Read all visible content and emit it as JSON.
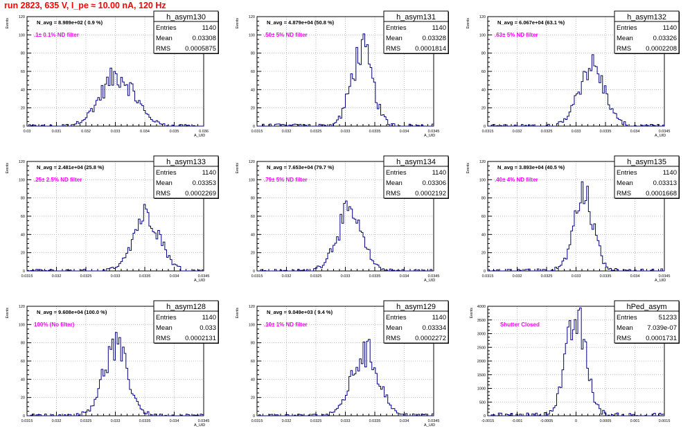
{
  "header": {
    "title": "run 2823,   635 V, I_pe ≈ 10.00 nA, 120 Hz"
  },
  "colors": {
    "title": "#ff0000",
    "histogram": "#000080",
    "filter_label": "#ff00ff",
    "grid": "#bbbbbb"
  },
  "chart_data": [
    {
      "type": "bar",
      "histogram": true,
      "stats": {
        "name": "h_asym130",
        "entries": "1140",
        "mean": "0.03308",
        "rms": "0.0005875"
      },
      "annotation": "N_avg = 8.989e+02 ( 0.9 %)",
      "filter_label": ".1± 0.1% ND filter",
      "xlabel": "A_UID",
      "ylabel": "Events",
      "xlim": [
        0.03,
        0.036
      ],
      "ylim": [
        0,
        120
      ],
      "xticks": [
        "0.03",
        "0.031",
        "0.032",
        "0.033",
        "0.034",
        "0.035",
        "0.036"
      ],
      "yticks": [
        "0",
        "20",
        "40",
        "60",
        "80",
        "100",
        "120"
      ],
      "dist": {
        "mean": 0.03308,
        "sigma": 0.00059,
        "peak": 55
      }
    },
    {
      "type": "bar",
      "histogram": true,
      "stats": {
        "name": "h_asym131",
        "entries": "1140",
        "mean": "0.03328",
        "rms": "0.0001814"
      },
      "annotation": "N_avg = 4.879e+04 (50.8 %)",
      "filter_label": ".50± 5% ND filter",
      "xlabel": "A_UID",
      "ylabel": "Events",
      "xlim": [
        0.0315,
        0.0345
      ],
      "xticks": [
        "0.0315",
        "0.032",
        "0.0325",
        "0.033",
        "0.0335",
        "0.034",
        "0.0345"
      ],
      "ylim": [
        0,
        120
      ],
      "yticks": [
        "0",
        "20",
        "40",
        "60",
        "80",
        "100",
        "120"
      ],
      "dist": {
        "mean": 0.03328,
        "sigma": 0.00018,
        "peak": 82
      }
    },
    {
      "type": "bar",
      "histogram": true,
      "stats": {
        "name": "h_asym132",
        "entries": "1140",
        "mean": "0.03326",
        "rms": "0.0002208"
      },
      "annotation": "N_avg = 6.067e+04 (63.1 %)",
      "filter_label": ".63± 5% ND filter",
      "xlabel": "A_UID",
      "ylabel": "Events",
      "xlim": [
        0.0315,
        0.0345
      ],
      "xticks": [
        "0.0315",
        "0.032",
        "0.0325",
        "0.033",
        "0.0335",
        "0.034",
        "0.0345"
      ],
      "ylim": [
        0,
        120
      ],
      "yticks": [
        "0",
        "20",
        "40",
        "60",
        "80",
        "100",
        "120"
      ],
      "dist": {
        "mean": 0.03326,
        "sigma": 0.00022,
        "peak": 66
      }
    },
    {
      "type": "bar",
      "histogram": true,
      "stats": {
        "name": "h_asym133",
        "entries": "1140",
        "mean": "0.03353",
        "rms": "0.0002269"
      },
      "annotation": "N_avg = 2.481e+04 (25.8 %)",
      "filter_label": ".25± 2.5% ND filter",
      "xlabel": "A_UID",
      "ylabel": "Events",
      "xlim": [
        0.0315,
        0.0345
      ],
      "xticks": [
        "0.0315",
        "0.032",
        "0.0325",
        "0.033",
        "0.0335",
        "0.034",
        "0.0345"
      ],
      "ylim": [
        0,
        120
      ],
      "yticks": [
        "0",
        "20",
        "40",
        "60",
        "80",
        "100",
        "120"
      ],
      "dist": {
        "mean": 0.03353,
        "sigma": 0.00023,
        "peak": 63
      }
    },
    {
      "type": "bar",
      "histogram": true,
      "stats": {
        "name": "h_asym134",
        "entries": "1140",
        "mean": "0.03306",
        "rms": "0.0002192"
      },
      "annotation": "N_avg = 7.653e+04 (79.7 %)",
      "filter_label": ".79± 5% ND filter",
      "xlabel": "A_UID",
      "ylabel": "Events",
      "xlim": [
        0.0315,
        0.0345
      ],
      "xticks": [
        "0.0315",
        "0.032",
        "0.0325",
        "0.033",
        "0.0335",
        "0.034",
        "0.0345"
      ],
      "ylim": [
        0,
        120
      ],
      "yticks": [
        "0",
        "20",
        "40",
        "60",
        "80",
        "100",
        "120"
      ],
      "dist": {
        "mean": 0.03306,
        "sigma": 0.00022,
        "peak": 62
      }
    },
    {
      "type": "bar",
      "histogram": true,
      "stats": {
        "name": "h_asym135",
        "entries": "1140",
        "mean": "0.03313",
        "rms": "0.0001668"
      },
      "annotation": "N_avg = 3.893e+04 (40.5 %)",
      "filter_label": ".40± 4% ND filter",
      "xlabel": "A_UID",
      "ylabel": "Events",
      "xlim": [
        0.0315,
        0.0345
      ],
      "xticks": [
        "0.0315",
        "0.032",
        "0.0325",
        "0.033",
        "0.0335",
        "0.034",
        "0.0345"
      ],
      "ylim": [
        0,
        120
      ],
      "yticks": [
        "0",
        "20",
        "40",
        "60",
        "80",
        "100",
        "120"
      ],
      "dist": {
        "mean": 0.03313,
        "sigma": 0.00017,
        "peak": 80
      }
    },
    {
      "type": "bar",
      "histogram": true,
      "stats": {
        "name": "h_asym128",
        "entries": "1140",
        "mean": "0.033",
        "rms": "0.0002131"
      },
      "annotation": "N_avg = 9.608e+04 (100.0 %)",
      "filter_label": "100% (No filter)",
      "xlabel": "A_UID",
      "ylabel": "Events",
      "xlim": [
        0.0315,
        0.0345
      ],
      "xticks": [
        "0.0315",
        "0.032",
        "0.0325",
        "0.033",
        "0.0335",
        "0.034",
        "0.0345"
      ],
      "ylim": [
        0,
        120
      ],
      "yticks": [
        "0",
        "20",
        "40",
        "60",
        "80",
        "100",
        "120"
      ],
      "dist": {
        "mean": 0.033,
        "sigma": 0.00021,
        "peak": 74
      }
    },
    {
      "type": "bar",
      "histogram": true,
      "stats": {
        "name": "h_asym129",
        "entries": "1140",
        "mean": "0.03334",
        "rms": "0.0002272"
      },
      "annotation": "N_avg = 9.049e+03 ( 9.4 %)",
      "filter_label": ".10± 1% ND filter",
      "xlabel": "A_UID",
      "ylabel": "Events",
      "xlim": [
        0.0315,
        0.0345
      ],
      "xticks": [
        "0.0315",
        "0.032",
        "0.0325",
        "0.033",
        "0.0335",
        "0.034",
        "0.0345"
      ],
      "ylim": [
        0,
        120
      ],
      "yticks": [
        "0",
        "20",
        "40",
        "60",
        "80",
        "100",
        "120"
      ],
      "dist": {
        "mean": 0.03334,
        "sigma": 0.00023,
        "peak": 69
      }
    },
    {
      "type": "bar",
      "histogram": true,
      "stats": {
        "name": "hPed_asym",
        "entries": "51233",
        "mean": "7.039e-07",
        "rms": "0.0001731"
      },
      "annotation": "",
      "filter_label": "Shutter Closed",
      "xlabel": "",
      "ylabel": "Events",
      "xlim": [
        -0.0015,
        0.0015
      ],
      "xticks": [
        "-0.0015",
        "-0.001",
        "-0.0005",
        "0",
        "0.0005",
        "0.001",
        "0.0015"
      ],
      "ylim": [
        0,
        4000
      ],
      "yticks": [
        "0",
        "500",
        "1000",
        "1500",
        "2000",
        "2500",
        "3000",
        "3500",
        "4000"
      ],
      "dist": {
        "mean": 0.0,
        "sigma": 0.000173,
        "peak": 3480
      }
    }
  ]
}
